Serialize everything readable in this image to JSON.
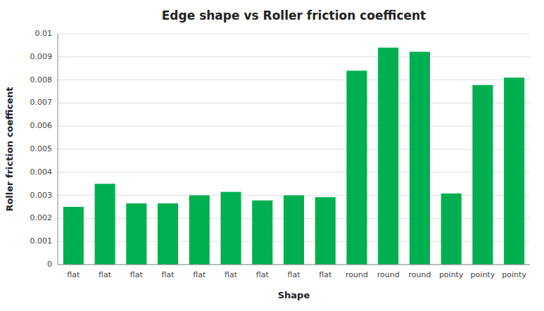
{
  "chart_data": {
    "type": "bar",
    "title": "Edge shape vs Roller friction coefficent",
    "xlabel": "Shape",
    "ylabel": "Roller friction coefficent",
    "categories": [
      "flat",
      "flat",
      "flat",
      "flat",
      "flat",
      "flat",
      "flat",
      "flat",
      "flat",
      "round",
      "round",
      "round",
      "pointy",
      "pointy",
      "pointy"
    ],
    "values": [
      0.0025,
      0.0035,
      0.00265,
      0.00265,
      0.003,
      0.00315,
      0.00278,
      0.003,
      0.00292,
      0.0084,
      0.0094,
      0.00922,
      0.00308,
      0.00778,
      0.0081
    ],
    "color": "#00b050",
    "ylim": [
      0,
      0.01
    ],
    "yticks": [
      0,
      0.001,
      0.002,
      0.003,
      0.004,
      0.005,
      0.006,
      0.007,
      0.008,
      0.009,
      0.01
    ],
    "grid": true
  }
}
